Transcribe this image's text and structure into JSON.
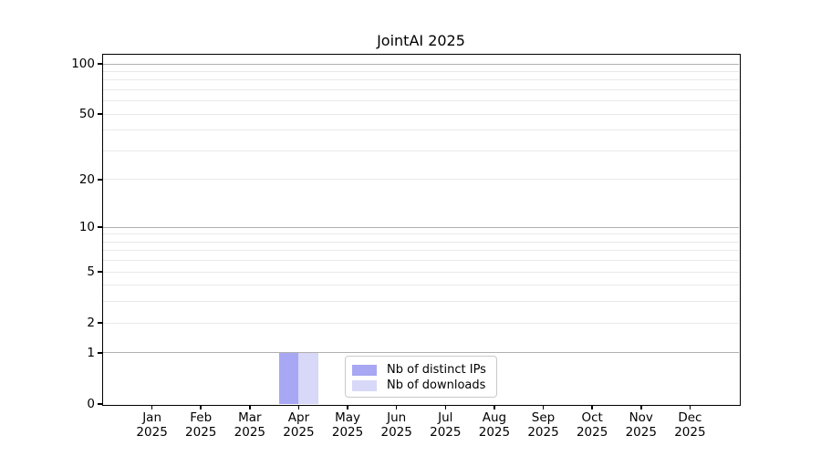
{
  "chart_data": {
    "type": "bar",
    "title": "JointAI 2025",
    "categories": [
      "Jan 2025",
      "Feb 2025",
      "Mar 2025",
      "Apr 2025",
      "May 2025",
      "Jun 2025",
      "Jul 2025",
      "Aug 2025",
      "Sep 2025",
      "Oct 2025",
      "Nov 2025",
      "Dec 2025"
    ],
    "series": [
      {
        "name": "Nb of distinct IPs",
        "color": "#a7a7f3",
        "values": [
          0,
          0,
          0,
          1,
          0,
          0,
          0,
          0,
          0,
          0,
          0,
          0
        ]
      },
      {
        "name": "Nb of downloads",
        "color": "#d8d8f8",
        "values": [
          0,
          0,
          0,
          1,
          0,
          0,
          0,
          0,
          0,
          0,
          0,
          0
        ]
      }
    ],
    "xlabel": "",
    "ylabel": "",
    "yscale": "log1p",
    "yticks": [
      0,
      1,
      2,
      5,
      10,
      20,
      50,
      100
    ],
    "ylim": [
      0,
      113
    ],
    "grid": {
      "major_values": [
        1,
        10,
        100
      ],
      "minor_values": [
        2,
        3,
        4,
        5,
        6,
        7,
        8,
        9,
        20,
        30,
        40,
        50,
        60,
        70,
        80,
        90
      ],
      "major_color": "#b0b0b0",
      "minor_color": "#e9e9e9"
    },
    "legend_position": "lower-center-inside",
    "axis_color": "#000000"
  }
}
